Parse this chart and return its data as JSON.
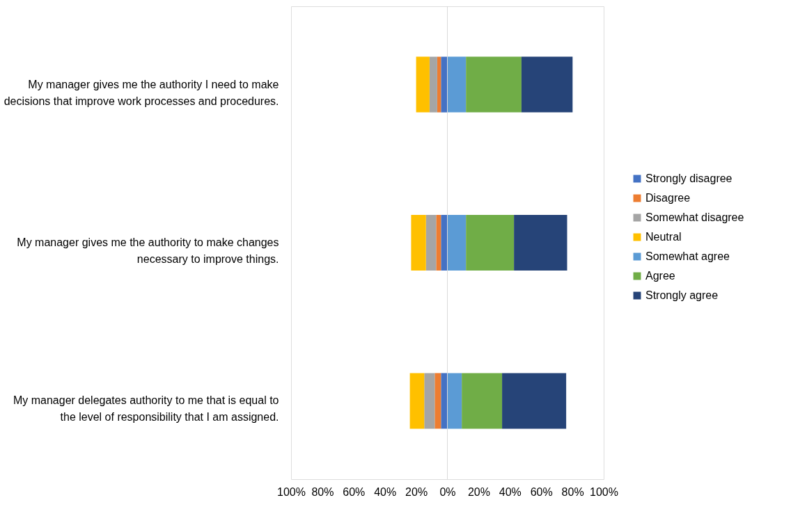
{
  "chart_data": {
    "type": "bar",
    "orientation": "horizontal",
    "stacked": true,
    "categories": [
      "My manager gives me the authority I need to make decisions that improve work processes and procedures.",
      "My manager gives me the authority to make changes necessary to improve things.",
      "My manager delegates authority to me that is equal to the level of responsibility that I am assigned."
    ],
    "series": [
      {
        "name": "Strongly disagree",
        "color": "#4472c4",
        "values": [
          -4.1,
          -4.1,
          -4.1
        ]
      },
      {
        "name": "Disagree",
        "color": "#ed7d31",
        "values": [
          -2.4,
          -3.1,
          -4.0
        ]
      },
      {
        "name": "Somewhat disagree",
        "color": "#a5a5a5",
        "values": [
          -4.9,
          -6.5,
          -6.7
        ]
      },
      {
        "name": "Neutral",
        "color": "#ffc000",
        "values": [
          -8.6,
          -9.5,
          -9.2
        ]
      },
      {
        "name": "Somewhat agree",
        "color": "#5b9bd5",
        "values": [
          11.9,
          11.9,
          9.2
        ]
      },
      {
        "name": "Agree",
        "color": "#70ad47",
        "values": [
          35.5,
          30.7,
          25.8
        ]
      },
      {
        "name": "Strongly agree",
        "color": "#264478",
        "values": [
          32.7,
          34.0,
          41.0
        ]
      }
    ],
    "xlim": [
      -100,
      100
    ],
    "xticks": [
      {
        "value": -100,
        "label": "100%"
      },
      {
        "value": -80,
        "label": "80%"
      },
      {
        "value": -60,
        "label": "60%"
      },
      {
        "value": -40,
        "label": "40%"
      },
      {
        "value": -20,
        "label": "20%"
      },
      {
        "value": 0,
        "label": "0%"
      },
      {
        "value": 20,
        "label": "20%"
      },
      {
        "value": 40,
        "label": "40%"
      },
      {
        "value": 60,
        "label": "60%"
      },
      {
        "value": 80,
        "label": "80%"
      },
      {
        "value": 100,
        "label": "100%"
      }
    ],
    "ref_lines": [
      {
        "axis": "x",
        "value": 0,
        "color": "#d9d9d9"
      }
    ],
    "grid": false,
    "legend": "right"
  }
}
